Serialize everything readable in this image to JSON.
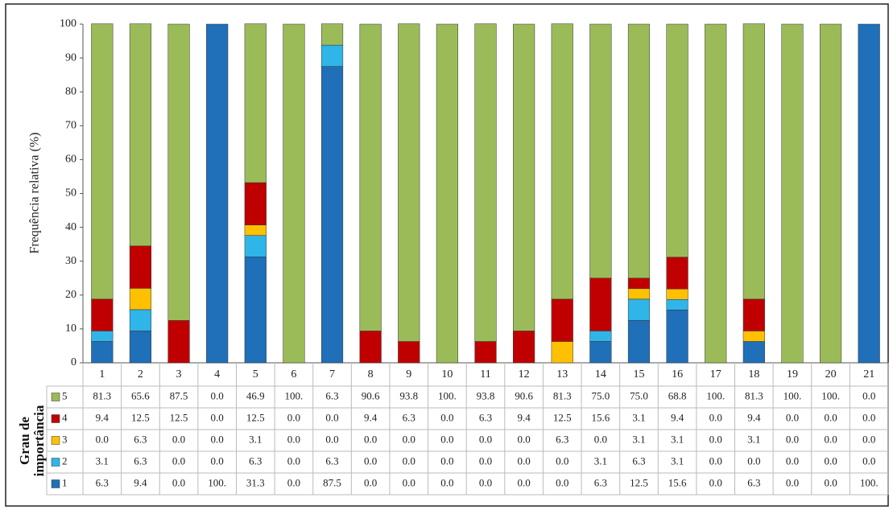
{
  "chart_data": {
    "type": "stacked-bar",
    "y_label": "Frequência relativa (%)",
    "table_title": "Grau de importância",
    "categories": [
      "1",
      "2",
      "3",
      "4",
      "5",
      "6",
      "7",
      "8",
      "9",
      "10",
      "11",
      "12",
      "13",
      "14",
      "15",
      "16",
      "17",
      "18",
      "19",
      "20",
      "21"
    ],
    "ylim": [
      0,
      100
    ],
    "yticks": [
      0,
      10,
      20,
      30,
      40,
      50,
      60,
      70,
      80,
      90,
      100
    ],
    "grid": false,
    "series": [
      {
        "name": "1",
        "color": "#1f6fb9",
        "values": [
          6.3,
          9.4,
          0,
          100,
          31.3,
          0,
          87.5,
          0,
          0,
          0,
          0,
          0,
          0,
          6.3,
          12.5,
          15.6,
          0,
          6.3,
          0,
          0,
          100
        ],
        "value_labels": [
          "6.3",
          "9.4",
          "0.0",
          "100.",
          "31.3",
          "0.0",
          "87.5",
          "0.0",
          "0.0",
          "0.0",
          "0.0",
          "0.0",
          "0.0",
          "6.3",
          "12.5",
          "15.6",
          "0.0",
          "6.3",
          "0.0",
          "0.0",
          "100."
        ]
      },
      {
        "name": "2",
        "color": "#2fb5e8",
        "values": [
          3.1,
          6.3,
          0,
          0,
          6.3,
          0,
          6.3,
          0,
          0,
          0,
          0,
          0,
          0,
          3.1,
          6.3,
          3.1,
          0,
          0,
          0,
          0,
          0
        ],
        "value_labels": [
          "3.1",
          "6.3",
          "0.0",
          "0.0",
          "6.3",
          "0.0",
          "6.3",
          "0.0",
          "0.0",
          "0.0",
          "0.0",
          "0.0",
          "0.0",
          "3.1",
          "6.3",
          "3.1",
          "0.0",
          "0.0",
          "0.0",
          "0.0",
          "0.0"
        ]
      },
      {
        "name": "3",
        "color": "#ffc000",
        "values": [
          0,
          6.3,
          0,
          0,
          3.1,
          0,
          0,
          0,
          0,
          0,
          0,
          0,
          6.3,
          0,
          3.1,
          3.1,
          0,
          3.1,
          0,
          0,
          0
        ],
        "value_labels": [
          "0.0",
          "6.3",
          "0.0",
          "0.0",
          "3.1",
          "0.0",
          "0.0",
          "0.0",
          "0.0",
          "0.0",
          "0.0",
          "0.0",
          "6.3",
          "0.0",
          "3.1",
          "3.1",
          "0.0",
          "3.1",
          "0.0",
          "0.0",
          "0.0"
        ]
      },
      {
        "name": "4",
        "color": "#c00000",
        "values": [
          9.4,
          12.5,
          12.5,
          0,
          12.5,
          0,
          0,
          9.4,
          6.3,
          0,
          6.3,
          9.4,
          12.5,
          15.6,
          3.1,
          9.4,
          0,
          9.4,
          0,
          0,
          0
        ],
        "value_labels": [
          "9.4",
          "12.5",
          "12.5",
          "0.0",
          "12.5",
          "0.0",
          "0.0",
          "9.4",
          "6.3",
          "0.0",
          "6.3",
          "9.4",
          "12.5",
          "15.6",
          "3.1",
          "9.4",
          "0.0",
          "9.4",
          "0.0",
          "0.0",
          "0.0"
        ]
      },
      {
        "name": "5",
        "color": "#9bbb59",
        "values": [
          81.3,
          65.6,
          87.5,
          0,
          46.9,
          100,
          6.3,
          90.6,
          93.8,
          100,
          93.8,
          90.6,
          81.3,
          75,
          75,
          68.8,
          100,
          81.3,
          100,
          100,
          0
        ],
        "value_labels": [
          "81.3",
          "65.6",
          "87.5",
          "0.0",
          "46.9",
          "100.",
          "6.3",
          "90.6",
          "93.8",
          "100.",
          "93.8",
          "90.6",
          "81.3",
          "75.0",
          "75.0",
          "68.8",
          "100.",
          "81.3",
          "100.",
          "100.",
          "0.0"
        ]
      }
    ]
  }
}
